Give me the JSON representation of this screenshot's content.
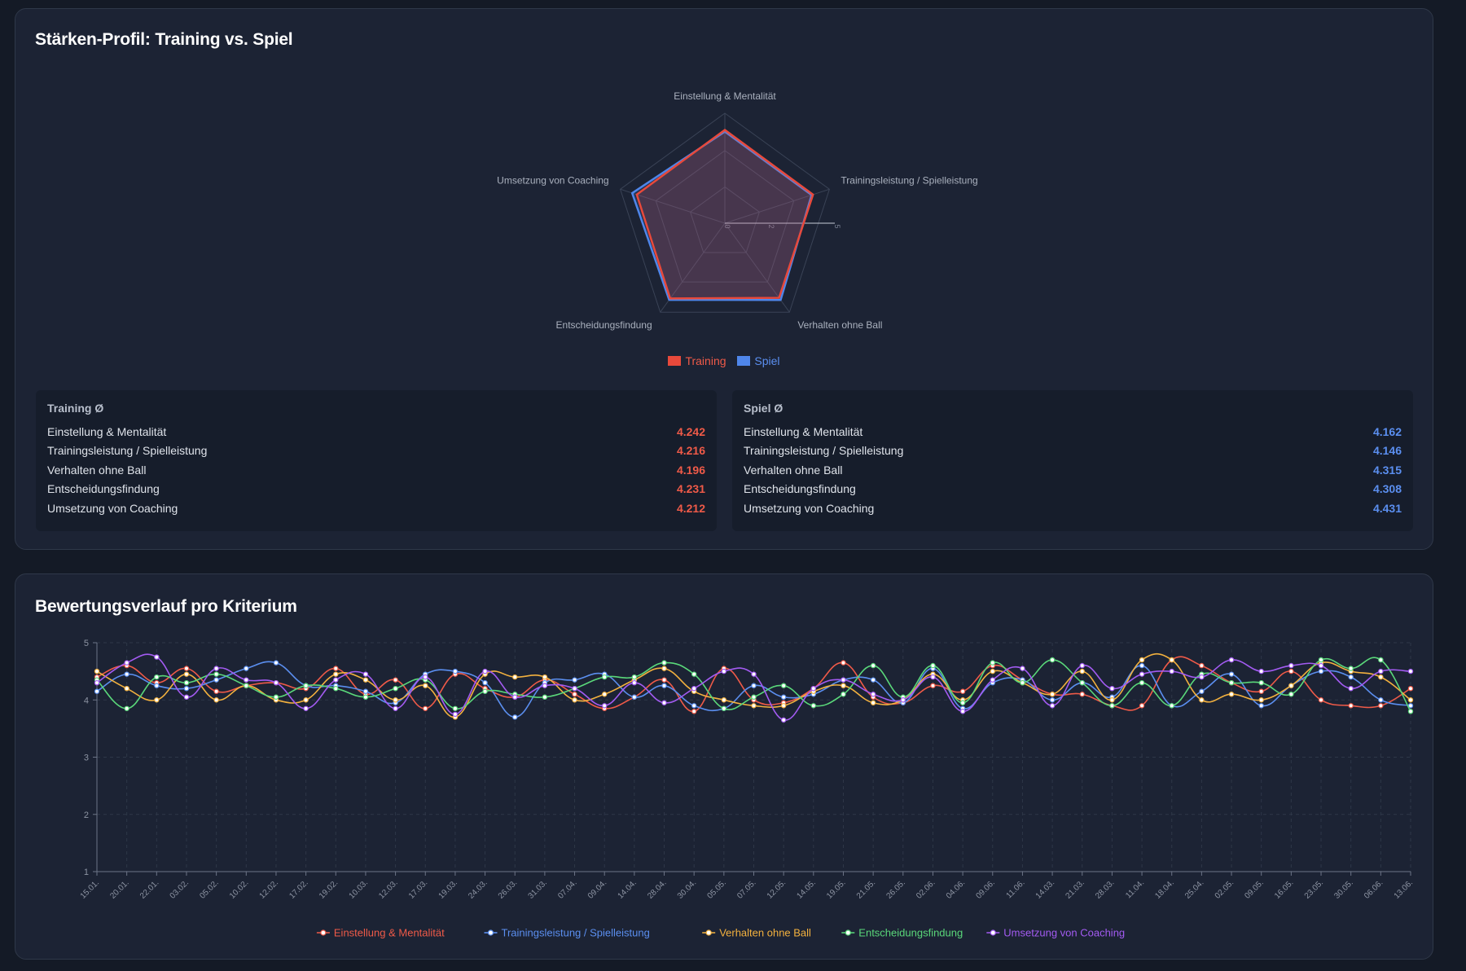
{
  "cards": {
    "radar_title": "Stärken-Profil: Training vs. Spiel",
    "line_title": "Bewertungsverlauf pro Kriterium"
  },
  "legend": {
    "training": "Training",
    "spiel": "Spiel"
  },
  "colors": {
    "training": "#e8493b",
    "spiel": "#4f86ea",
    "einstellung": "#ef5a48",
    "trainingsleistung": "#5b8ff0",
    "verhalten": "#f3b13e",
    "entscheidung": "#5ad87a",
    "coaching": "#a35bf2"
  },
  "stats": {
    "training": {
      "heading": "Training Ø",
      "rows": [
        {
          "label": "Einstellung & Mentalität",
          "value": "4.242"
        },
        {
          "label": "Trainingsleistung / Spielleistung",
          "value": "4.216"
        },
        {
          "label": "Verhalten ohne Ball",
          "value": "4.196"
        },
        {
          "label": "Entscheidungsfindung",
          "value": "4.231"
        },
        {
          "label": "Umsetzung von Coaching",
          "value": "4.212"
        }
      ]
    },
    "spiel": {
      "heading": "Spiel Ø",
      "rows": [
        {
          "label": "Einstellung & Mentalität",
          "value": "4.162"
        },
        {
          "label": "Trainingsleistung / Spielleistung",
          "value": "4.146"
        },
        {
          "label": "Verhalten ohne Ball",
          "value": "4.315"
        },
        {
          "label": "Entscheidungsfindung",
          "value": "4.308"
        },
        {
          "label": "Umsetzung von Coaching",
          "value": "4.431"
        }
      ]
    }
  },
  "chart_data": [
    {
      "type": "radar",
      "title": "Stärken-Profil: Training vs. Spiel",
      "axes": [
        "Einstellung & Mentalität",
        "Trainingsleistung / Spielleistung",
        "Verhalten ohne Ball",
        "Entscheidungsfindung",
        "Umsetzung von Coaching"
      ],
      "rlim": [
        0,
        5
      ],
      "r_ticks": [
        "0",
        "2",
        "5"
      ],
      "series": [
        {
          "name": "Training",
          "values": [
            4.242,
            4.216,
            4.196,
            4.231,
            4.212
          ]
        },
        {
          "name": "Spiel",
          "values": [
            4.162,
            4.146,
            4.315,
            4.308,
            4.431
          ]
        }
      ],
      "legend_position": "bottom"
    },
    {
      "type": "line",
      "title": "Bewertungsverlauf pro Kriterium",
      "ylim": [
        1,
        5
      ],
      "y_ticks": [
        "1",
        "2",
        "3",
        "4",
        "5"
      ],
      "x_ticks": [
        "15.01.",
        "20.01.",
        "22.01.",
        "03.02.",
        "05.02.",
        "10.02.",
        "12.02.",
        "17.02.",
        "19.02.",
        "10.03.",
        "12.03.",
        "17.03.",
        "19.03.",
        "24.03.",
        "26.03.",
        "31.03.",
        "07.04.",
        "09.04.",
        "14.04.",
        "28.04.",
        "30.04.",
        "05.05.",
        "07.05.",
        "12.05.",
        "14.05.",
        "19.05.",
        "21.05.",
        "26.05.",
        "02.06.",
        "04.06.",
        "09.06.",
        "11.06.",
        "14.03.",
        "21.03.",
        "28.03.",
        "11.04.",
        "18.04.",
        "25.04.",
        "02.05.",
        "09.05.",
        "16.05.",
        "23.05.",
        "30.05.",
        "06.06.",
        "13.06."
      ],
      "grid": true,
      "legend_position": "bottom",
      "series": [
        {
          "name": "Einstellung & Mentalität",
          "values": [
            4.4,
            4.6,
            4.3,
            4.55,
            4.15,
            4.25,
            4.3,
            4.2,
            4.55,
            4.1,
            4.35,
            3.85,
            4.45,
            4.2,
            4.05,
            4.35,
            4.1,
            3.85,
            4.05,
            4.35,
            3.8,
            4.55,
            4.0,
            3.95,
            4.2,
            4.65,
            4.05,
            3.95,
            4.25,
            4.15,
            4.6,
            4.35,
            4.1,
            4.1,
            3.9,
            3.9,
            4.7,
            4.6,
            4.3,
            4.15,
            4.5,
            4.0,
            3.9,
            3.9,
            4.2
          ]
        },
        {
          "name": "Trainingsleistung / Spielleistung",
          "values": [
            4.15,
            4.45,
            4.25,
            4.2,
            4.35,
            4.55,
            4.65,
            4.25,
            4.25,
            4.15,
            3.95,
            4.45,
            4.5,
            4.3,
            3.7,
            4.3,
            4.35,
            4.45,
            4.05,
            4.25,
            3.9,
            3.85,
            4.25,
            4.05,
            4.1,
            4.35,
            4.35,
            3.95,
            4.55,
            3.85,
            4.3,
            4.35,
            4.0,
            4.3,
            4.05,
            4.6,
            3.9,
            4.15,
            4.45,
            3.9,
            4.25,
            4.5,
            4.4,
            4.0,
            3.9
          ]
        },
        {
          "name": "Verhalten ohne Ball",
          "values": [
            4.5,
            4.2,
            4.0,
            4.45,
            4.0,
            4.25,
            4.0,
            4.0,
            4.45,
            4.35,
            4.0,
            4.25,
            3.7,
            4.45,
            4.4,
            4.4,
            4.0,
            4.1,
            4.35,
            4.55,
            4.15,
            4.0,
            3.9,
            3.9,
            4.15,
            4.25,
            3.95,
            4.0,
            4.45,
            4.0,
            4.5,
            4.3,
            4.1,
            4.5,
            4.0,
            4.7,
            4.7,
            4.0,
            4.1,
            4.0,
            4.25,
            4.65,
            4.5,
            4.4,
            4.0
          ]
        },
        {
          "name": "Entscheidungsfindung",
          "values": [
            4.35,
            3.85,
            4.4,
            4.3,
            4.45,
            4.25,
            4.05,
            4.25,
            4.2,
            4.05,
            4.2,
            4.35,
            3.85,
            4.15,
            4.1,
            4.05,
            4.2,
            4.4,
            4.4,
            4.65,
            4.45,
            3.85,
            4.05,
            4.25,
            3.9,
            4.1,
            4.6,
            4.05,
            4.6,
            3.95,
            4.65,
            4.3,
            4.7,
            4.3,
            3.9,
            4.3,
            3.9,
            4.45,
            4.3,
            4.3,
            4.1,
            4.7,
            4.55,
            4.7,
            3.8
          ]
        },
        {
          "name": "Umsetzung von Coaching",
          "values": [
            4.3,
            4.65,
            4.75,
            4.05,
            4.55,
            4.35,
            4.3,
            3.85,
            4.35,
            4.45,
            3.85,
            4.4,
            3.75,
            4.5,
            4.05,
            4.25,
            4.2,
            3.9,
            4.3,
            3.95,
            4.2,
            4.5,
            4.45,
            3.65,
            4.2,
            4.35,
            4.1,
            4.0,
            4.4,
            3.8,
            4.35,
            4.55,
            3.9,
            4.6,
            4.2,
            4.45,
            4.5,
            4.4,
            4.7,
            4.5,
            4.6,
            4.6,
            4.2,
            4.5,
            4.5
          ]
        }
      ]
    }
  ]
}
